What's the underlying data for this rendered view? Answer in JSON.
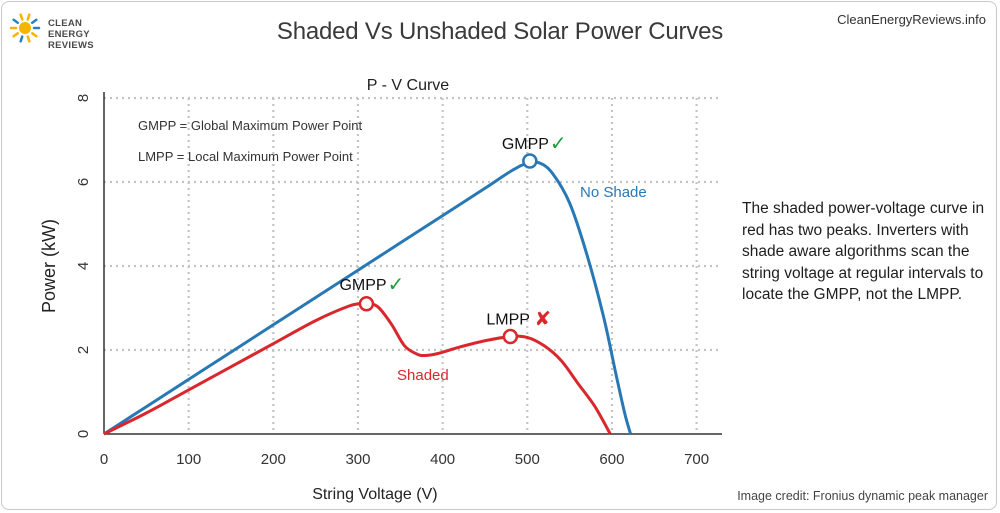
{
  "header": {
    "logo": {
      "line1": "CLEAN",
      "line2": "ENERGY",
      "line3": "REVIEWS",
      "sun_color": "#f5b400",
      "accent_color": "#2b80c5"
    },
    "title": "Shaded Vs Unshaded Solar Power Curves",
    "site": "CleanEnergyReviews.info"
  },
  "description": "The shaded power-voltage curve in red has two peaks. Inverters with shade aware algorithms scan the string voltage at regular intervals to locate the GMPP, not the LMPP.",
  "credit": "Image credit: Fronius dynamic peak manager",
  "chart_data": {
    "type": "line",
    "title": "P - V Curve",
    "xlabel": "String Voltage  (V)",
    "ylabel": "Power  (kW)",
    "xlim": [
      0,
      730
    ],
    "ylim": [
      0,
      8
    ],
    "xticks": [
      0,
      100,
      200,
      300,
      400,
      500,
      600,
      700
    ],
    "yticks": [
      0,
      2,
      4,
      6,
      8
    ],
    "grid": true,
    "notes": [
      "GMPP = Global Maximum Power Point",
      "LMPP = Local Maximum Power Point"
    ],
    "series": [
      {
        "name": "No Shade",
        "color": "#2878b5",
        "x": [
          0,
          50,
          100,
          150,
          200,
          250,
          300,
          350,
          400,
          450,
          480,
          500,
          515,
          530,
          550,
          570,
          590,
          605,
          615,
          622
        ],
        "y": [
          0,
          0.65,
          1.3,
          1.95,
          2.6,
          3.25,
          3.9,
          4.55,
          5.2,
          5.85,
          6.25,
          6.45,
          6.45,
          6.2,
          5.5,
          4.3,
          2.8,
          1.4,
          0.5,
          0
        ]
      },
      {
        "name": "Shaded",
        "color": "#d9272e",
        "x": [
          0,
          50,
          100,
          150,
          200,
          250,
          290,
          305,
          315,
          325,
          340,
          355,
          370,
          380,
          395,
          420,
          450,
          480,
          500,
          520,
          540,
          560,
          580,
          598
        ],
        "y": [
          0,
          0.5,
          1.05,
          1.6,
          2.15,
          2.7,
          3.05,
          3.1,
          3.1,
          3.0,
          2.6,
          2.1,
          1.9,
          1.87,
          1.92,
          2.07,
          2.22,
          2.32,
          2.3,
          2.1,
          1.75,
          1.2,
          0.65,
          0
        ]
      }
    ],
    "annotations": [
      {
        "label": "GMPP",
        "mark": "✓",
        "mark_color": "#1f9e3a",
        "x": 503,
        "y": 6.5,
        "point_color": "#2878b5"
      },
      {
        "label": "GMPP",
        "mark": "✓",
        "mark_color": "#1f9e3a",
        "x": 310,
        "y": 3.1,
        "point_color": "#d9272e"
      },
      {
        "label": "LMPP",
        "mark": "✘",
        "mark_color": "#d9272e",
        "x": 480,
        "y": 2.32,
        "point_color": "#d9272e"
      }
    ]
  }
}
